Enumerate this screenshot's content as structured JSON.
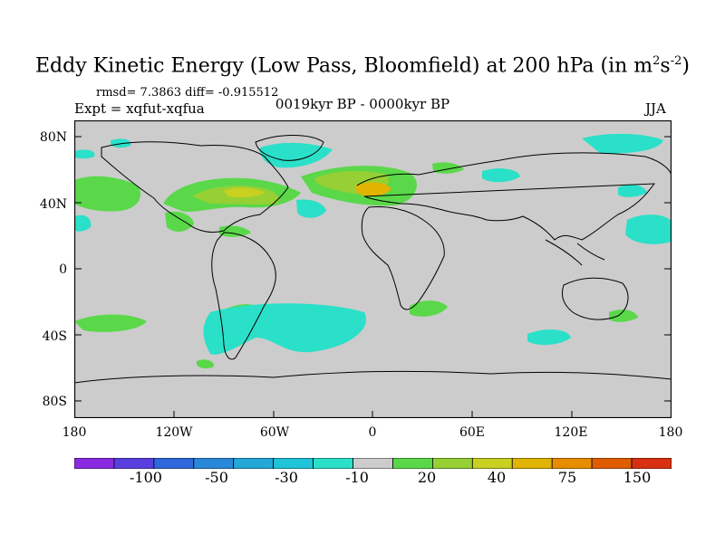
{
  "title": "Eddy Kinetic Energy (Low Pass, Bloomfield) at 200 hPa (in m",
  "title_unit_sup1": "2",
  "title_unit_mid": "s",
  "title_unit_sup2": "-2",
  "title_end": ")",
  "stats": "rmsd= 7.3863 diff= -0.915512",
  "experiment": "Expt = xqfut-xqfua",
  "period": "0019kyr BP - 0000kyr BP",
  "season": "JJA",
  "y_ticks": [
    "80N",
    "40N",
    "0",
    "40S",
    "80S"
  ],
  "x_ticks": [
    "180",
    "120W",
    "60W",
    "0",
    "60E",
    "120E",
    "180"
  ],
  "colorbar": {
    "colors": [
      "#8a2be2",
      "#5a3fe0",
      "#2f68dc",
      "#2a88d8",
      "#23a8d8",
      "#1fc4d8",
      "#2ae0c8",
      "#cccccc",
      "#5ad84a",
      "#96d034",
      "#c8d020",
      "#e0b400",
      "#e88c00",
      "#e05c00",
      "#d83010"
    ],
    "labels": [
      "-100",
      "-50",
      "-30",
      "-10",
      "20",
      "40",
      "75",
      "150"
    ]
  },
  "colors": {
    "land_ocean_bg": "#cccccc",
    "positive_low": "#5ad84a",
    "positive_mid": "#96d034",
    "positive_high": "#c8d020",
    "positive_peak": "#e0b400",
    "negative_low": "#2ae0c8",
    "coastline": "#000000"
  }
}
